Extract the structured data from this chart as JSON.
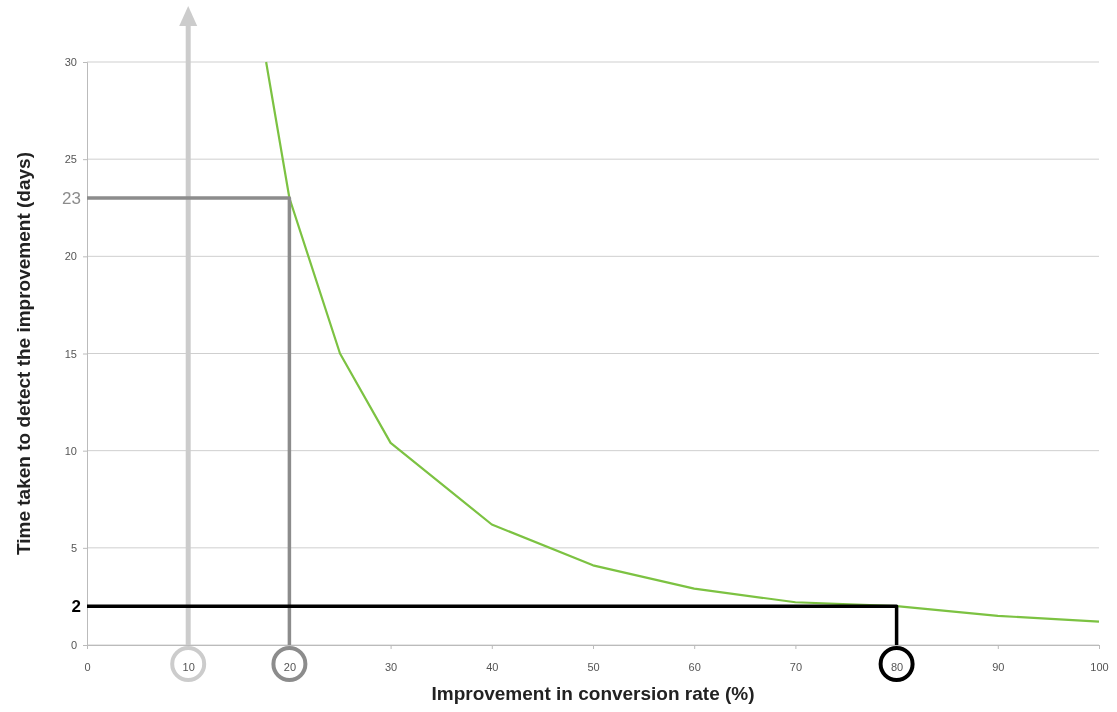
{
  "chart_data": {
    "type": "line",
    "xlabel": "Improvement in conversion rate (%)",
    "ylabel": "Time taken to detect the improvement (days)",
    "xlim": [
      0,
      100
    ],
    "xticks": [
      0,
      10,
      20,
      30,
      40,
      50,
      60,
      70,
      80,
      90,
      100
    ],
    "ylim": [
      0,
      30
    ],
    "yticks": [
      0,
      5,
      10,
      15,
      20,
      25,
      30
    ],
    "grid": "y",
    "marker": "none",
    "line_style": "solid",
    "series": [
      {
        "color": "#7cc242",
        "x": [
          17.7,
          20,
          25,
          30,
          40,
          50,
          60,
          70,
          80,
          90,
          100
        ],
        "values": [
          30,
          23,
          15,
          10.4,
          6.2,
          4.1,
          2.9,
          2.2,
          2,
          1.5,
          1.2
        ]
      },
      {
        "color": "#8c8c8c",
        "x": [
          0,
          20,
          20
        ],
        "values": [
          23,
          23,
          0
        ]
      },
      {
        "color": "#000000",
        "x": [
          0,
          80,
          80
        ],
        "values": [
          2,
          2,
          0
        ]
      }
    ],
    "ref_lines": [
      {
        "axis": "x",
        "value": 10,
        "color": "#cccccc"
      }
    ],
    "annotations": [
      {
        "text": "23",
        "x": 0,
        "y": 23
      },
      {
        "text": "2",
        "x": 0,
        "y": 2
      }
    ]
  }
}
